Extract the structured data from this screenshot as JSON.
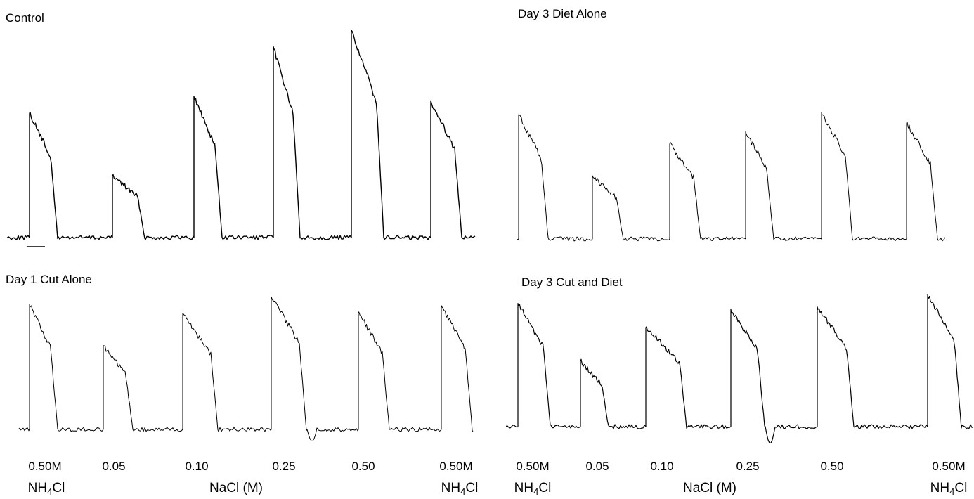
{
  "chart_data": {
    "type": "line",
    "panels": [
      {
        "id": "control",
        "title": "Control",
        "responses": [
          {
            "label": "0.50M",
            "stimulus": "NH4Cl",
            "relative_peak": 0.6
          },
          {
            "label": "0.05",
            "stimulus": "NaCl",
            "relative_peak": 0.3
          },
          {
            "label": "0.10",
            "stimulus": "NaCl",
            "relative_peak": 0.68
          },
          {
            "label": "0.25",
            "stimulus": "NaCl",
            "relative_peak": 0.92
          },
          {
            "label": "0.50",
            "stimulus": "NaCl",
            "relative_peak": 1.0
          },
          {
            "label": "0.50M",
            "stimulus": "NH4Cl",
            "relative_peak": 0.66
          }
        ]
      },
      {
        "id": "day3-diet-alone",
        "title": "Day 3 Diet Alone",
        "responses": [
          {
            "label": "0.50M",
            "stimulus": "NH4Cl",
            "relative_peak": 0.59
          },
          {
            "label": "0.05",
            "stimulus": "NaCl",
            "relative_peak": 0.3
          },
          {
            "label": "0.10",
            "stimulus": "NaCl",
            "relative_peak": 0.45
          },
          {
            "label": "0.25",
            "stimulus": "NaCl",
            "relative_peak": 0.51
          },
          {
            "label": "0.50",
            "stimulus": "NaCl",
            "relative_peak": 0.6
          },
          {
            "label": "0.50M",
            "stimulus": "NH4Cl",
            "relative_peak": 0.55
          }
        ]
      },
      {
        "id": "day1-cut-alone",
        "title": "Day 1 Cut Alone",
        "responses": [
          {
            "label": "0.50M",
            "stimulus": "NH4Cl",
            "relative_peak": 1.0
          },
          {
            "label": "0.05",
            "stimulus": "NaCl",
            "relative_peak": 0.67
          },
          {
            "label": "0.10",
            "stimulus": "NaCl",
            "relative_peak": 0.93
          },
          {
            "label": "0.25",
            "stimulus": "NaCl",
            "relative_peak": 1.06
          },
          {
            "label": "0.50",
            "stimulus": "NaCl",
            "relative_peak": 0.94
          },
          {
            "label": "0.50M",
            "stimulus": "NH4Cl",
            "relative_peak": 0.99
          }
        ]
      },
      {
        "id": "day3-cut-and-diet",
        "title": "Day 3 Cut and Diet",
        "responses": [
          {
            "label": "0.50M",
            "stimulus": "NH4Cl",
            "relative_peak": 1.02
          },
          {
            "label": "0.05",
            "stimulus": "NaCl",
            "relative_peak": 0.54
          },
          {
            "label": "0.10",
            "stimulus": "NaCl",
            "relative_peak": 0.82
          },
          {
            "label": "0.25",
            "stimulus": "NaCl",
            "relative_peak": 0.97
          },
          {
            "label": "0.50",
            "stimulus": "NaCl",
            "relative_peak": 0.99
          },
          {
            "label": "0.50M",
            "stimulus": "NH4Cl",
            "relative_peak": 1.09
          }
        ]
      }
    ],
    "x_labels": {
      "left": [
        "0.50M",
        "0.05",
        "0.10",
        "0.25",
        "0.50",
        "0.50M"
      ],
      "right": [
        "0.50M",
        "0.05",
        "0.10",
        "0.25",
        "0.50",
        "0.50M"
      ]
    },
    "stimulus_labels": {
      "nh4cl_base": "NH",
      "nh4cl_sub": "4",
      "nh4cl_tail": "Cl",
      "nacl": "NaCl (M)"
    },
    "grid": false,
    "legend": "none"
  }
}
